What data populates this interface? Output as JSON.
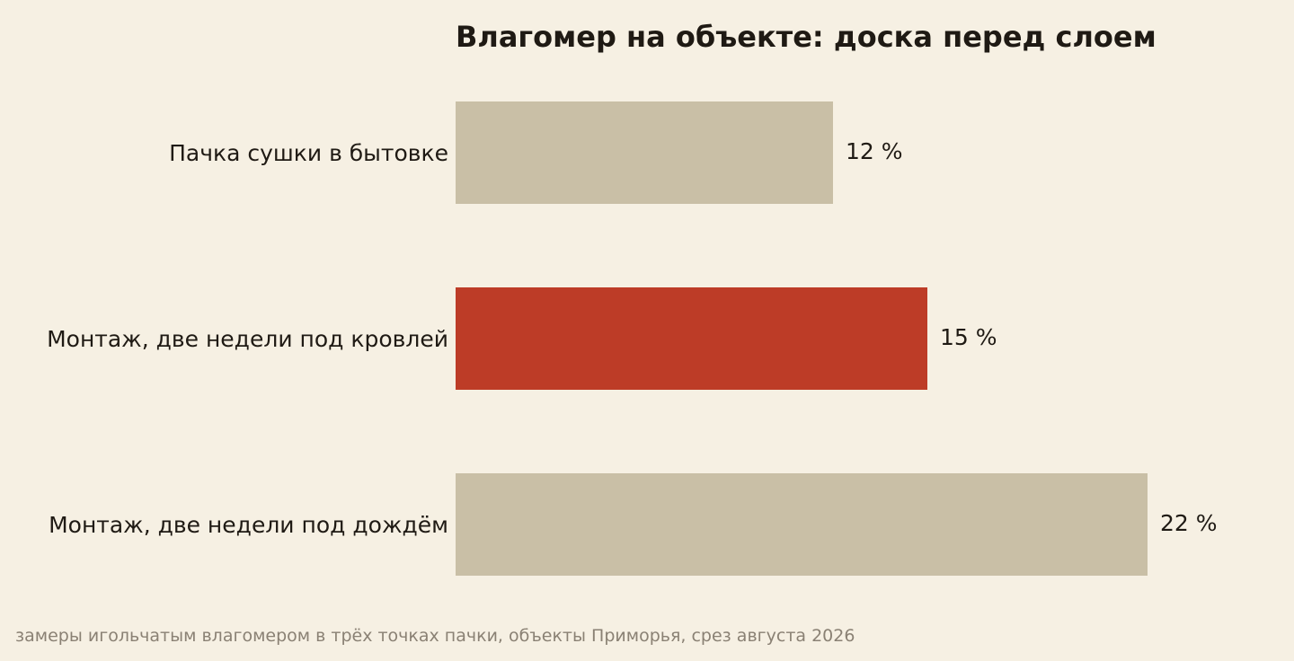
{
  "chart_data": {
    "type": "bar",
    "orientation": "horizontal",
    "title": "Влагомер на объекте: доска перед слоем",
    "categories": [
      "Пачка сушки в бытовке",
      "Монтаж, две недели под кровлей",
      "Монтаж, две недели под дождём"
    ],
    "values": [
      12,
      15,
      22
    ],
    "value_labels": [
      "12 %",
      "15 %",
      "22 %"
    ],
    "unit": "%",
    "xlim": [
      0,
      22
    ],
    "grid": false,
    "legend": "none",
    "colors": [
      "#c9bfa6",
      "#bd3c27",
      "#c9bfa6"
    ],
    "highlight_index": 1,
    "footnote": "замеры игольчатым влагомером в трёх точках пачки, объекты Приморья, срез августа 2026"
  },
  "colors": {
    "background": "#f6f0e3",
    "text": "#1f1a14",
    "muted": "#8a8174",
    "bar": "#c9bfa6",
    "highlight": "#bd3c27"
  }
}
